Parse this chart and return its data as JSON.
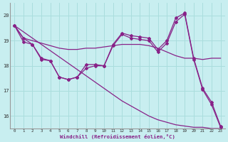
{
  "background_color": "#c8eef0",
  "grid_color": "#aadddd",
  "line_color": "#882288",
  "xlabel": "Windchill (Refroidissement éolien,°C)",
  "xlim": [
    -0.5,
    23.5
  ],
  "ylim": [
    15.5,
    20.5
  ],
  "yticks": [
    16,
    17,
    18,
    19,
    20
  ],
  "xticks": [
    0,
    1,
    2,
    3,
    4,
    5,
    6,
    7,
    8,
    9,
    10,
    11,
    12,
    13,
    14,
    15,
    16,
    17,
    18,
    19,
    20,
    21,
    22,
    23
  ],
  "line1_markers": [
    19.6,
    19.1,
    18.85,
    18.3,
    18.2,
    17.55,
    17.45,
    17.55,
    18.05,
    18.05,
    18.0,
    18.85,
    19.3,
    19.2,
    19.15,
    19.1,
    18.65,
    19.0,
    19.9,
    20.1,
    18.3,
    17.1,
    16.55,
    15.6
  ],
  "line2_straight": [
    19.6,
    19.35,
    19.1,
    18.85,
    18.6,
    18.35,
    18.1,
    17.85,
    17.6,
    17.35,
    17.1,
    16.85,
    16.6,
    16.4,
    16.2,
    16.0,
    15.85,
    15.75,
    15.65,
    15.6,
    15.55,
    15.55,
    15.5,
    15.5
  ],
  "line3_markers": [
    19.6,
    18.95,
    18.85,
    18.25,
    18.2,
    17.55,
    17.45,
    17.55,
    17.9,
    18.0,
    18.0,
    18.8,
    19.25,
    19.1,
    19.05,
    19.0,
    18.55,
    18.9,
    19.75,
    20.05,
    18.25,
    17.05,
    16.45,
    15.55
  ],
  "line4_flat": [
    19.6,
    19.1,
    19.0,
    18.9,
    18.8,
    18.7,
    18.65,
    18.65,
    18.7,
    18.7,
    18.75,
    18.8,
    18.85,
    18.85,
    18.85,
    18.8,
    18.7,
    18.55,
    18.4,
    18.3,
    18.3,
    18.25,
    18.3,
    18.3
  ]
}
